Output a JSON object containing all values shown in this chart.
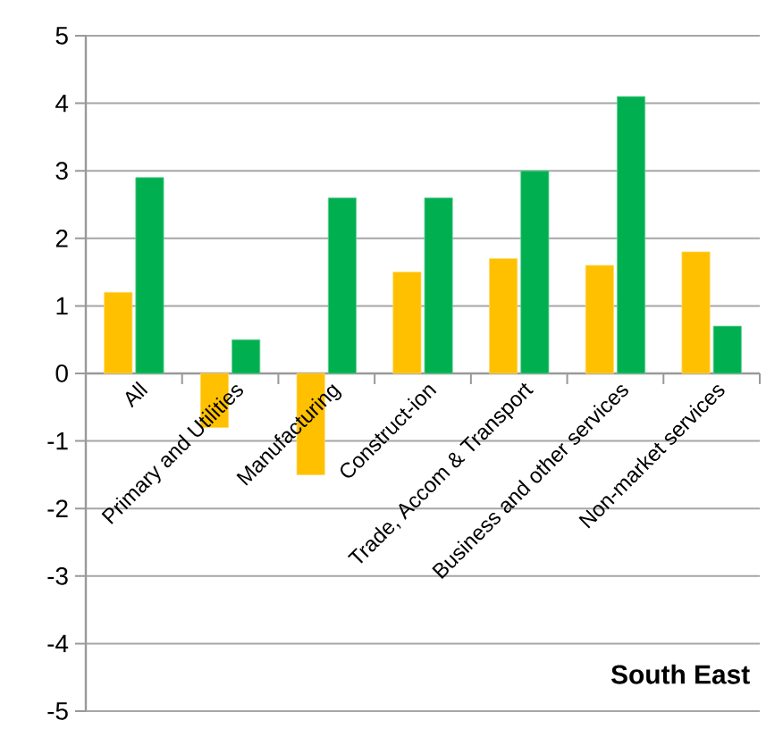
{
  "chart_data": {
    "type": "bar",
    "title": "South East",
    "categories": [
      "All",
      "Primary and Utilities",
      "Manufacturing",
      "Construct-ion",
      "Trade, Accom & Transport",
      "Business and other services",
      "Non-market services"
    ],
    "series": [
      {
        "color": "#ffc000",
        "values": [
          1.2,
          -0.8,
          -1.5,
          1.5,
          1.7,
          1.6,
          1.8
        ]
      },
      {
        "color": "#00b050",
        "values": [
          2.9,
          0.5,
          2.6,
          2.6,
          3.0,
          4.1,
          0.7
        ]
      }
    ],
    "ylim": [
      -5,
      5
    ],
    "yticks": [
      -5,
      -4,
      -3,
      -2,
      -1,
      0,
      1,
      2,
      3,
      4,
      5
    ],
    "grid": "y"
  }
}
